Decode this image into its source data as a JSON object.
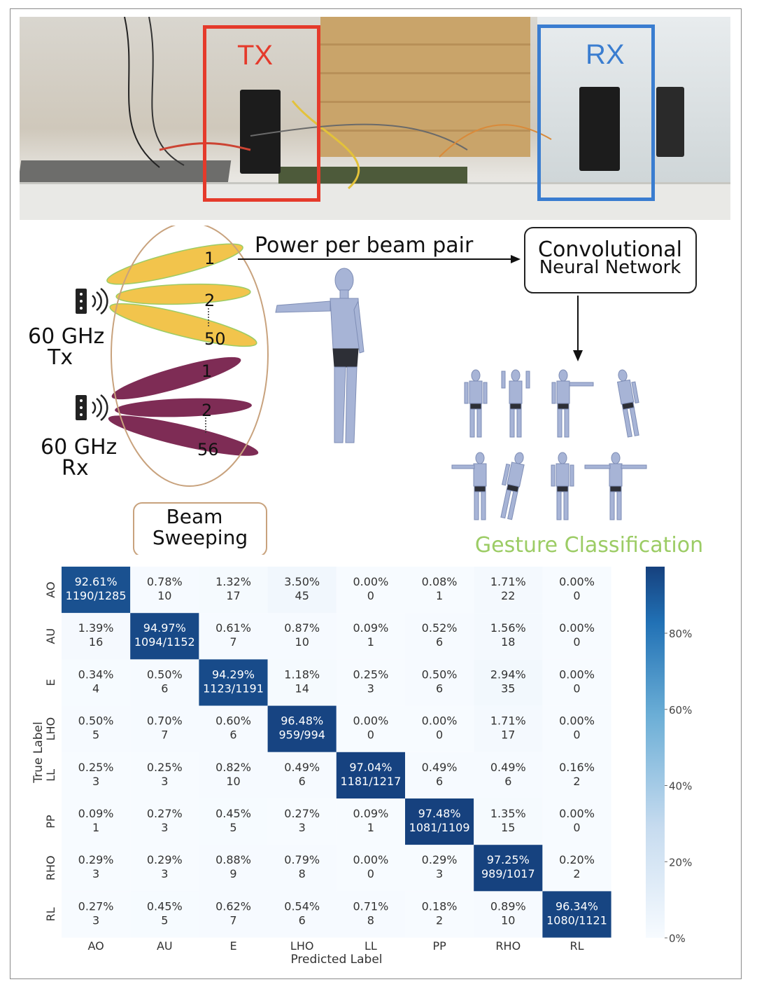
{
  "photo": {
    "tx_label": "TX",
    "rx_label": "RX"
  },
  "diagram": {
    "tx_title_1": "60 GHz",
    "tx_title_2": "Tx",
    "rx_title_1": "60 GHz",
    "rx_title_2": "Rx",
    "tx_beams": [
      "1",
      "2",
      "50"
    ],
    "rx_beams": [
      "1",
      "2",
      "56"
    ],
    "arrow_label": "Power per beam pair",
    "cnn_line1": "Convolutional",
    "cnn_line2": "Neural Network",
    "beam_line1": "Beam",
    "beam_line2": "Sweeping",
    "gesture_label": "Gesture Classification",
    "tx_color": "#f2c44c",
    "rx_color": "#7e2c55",
    "gesture_color": "#9ccc65"
  },
  "chart_data": {
    "type": "heatmap",
    "xlabel": "Predicted Label",
    "ylabel": "True Label",
    "categories": [
      "AO",
      "AU",
      "E",
      "LHO",
      "LL",
      "PP",
      "RHO",
      "RL"
    ],
    "colorbar_ticks": [
      "0%",
      "20%",
      "40%",
      "60%",
      "80%"
    ],
    "colorbar_range": [
      0,
      97.48
    ],
    "colormap": [
      "#f7fbff",
      "#16417e"
    ],
    "cells": [
      [
        [
          "92.61%",
          "1190/1285"
        ],
        [
          "0.78%",
          "10"
        ],
        [
          "1.32%",
          "17"
        ],
        [
          "3.50%",
          "45"
        ],
        [
          "0.00%",
          "0"
        ],
        [
          "0.08%",
          "1"
        ],
        [
          "1.71%",
          "22"
        ],
        [
          "0.00%",
          "0"
        ]
      ],
      [
        [
          "1.39%",
          "16"
        ],
        [
          "94.97%",
          "1094/1152"
        ],
        [
          "0.61%",
          "7"
        ],
        [
          "0.87%",
          "10"
        ],
        [
          "0.09%",
          "1"
        ],
        [
          "0.52%",
          "6"
        ],
        [
          "1.56%",
          "18"
        ],
        [
          "0.00%",
          "0"
        ]
      ],
      [
        [
          "0.34%",
          "4"
        ],
        [
          "0.50%",
          "6"
        ],
        [
          "94.29%",
          "1123/1191"
        ],
        [
          "1.18%",
          "14"
        ],
        [
          "0.25%",
          "3"
        ],
        [
          "0.50%",
          "6"
        ],
        [
          "2.94%",
          "35"
        ],
        [
          "0.00%",
          "0"
        ]
      ],
      [
        [
          "0.50%",
          "5"
        ],
        [
          "0.70%",
          "7"
        ],
        [
          "0.60%",
          "6"
        ],
        [
          "96.48%",
          "959/994"
        ],
        [
          "0.00%",
          "0"
        ],
        [
          "0.00%",
          "0"
        ],
        [
          "1.71%",
          "17"
        ],
        [
          "0.00%",
          "0"
        ]
      ],
      [
        [
          "0.25%",
          "3"
        ],
        [
          "0.25%",
          "3"
        ],
        [
          "0.82%",
          "10"
        ],
        [
          "0.49%",
          "6"
        ],
        [
          "97.04%",
          "1181/1217"
        ],
        [
          "0.49%",
          "6"
        ],
        [
          "0.49%",
          "6"
        ],
        [
          "0.16%",
          "2"
        ]
      ],
      [
        [
          "0.09%",
          "1"
        ],
        [
          "0.27%",
          "3"
        ],
        [
          "0.45%",
          "5"
        ],
        [
          "0.27%",
          "3"
        ],
        [
          "0.09%",
          "1"
        ],
        [
          "97.48%",
          "1081/1109"
        ],
        [
          "1.35%",
          "15"
        ],
        [
          "0.00%",
          "0"
        ]
      ],
      [
        [
          "0.29%",
          "3"
        ],
        [
          "0.29%",
          "3"
        ],
        [
          "0.88%",
          "9"
        ],
        [
          "0.79%",
          "8"
        ],
        [
          "0.00%",
          "0"
        ],
        [
          "0.29%",
          "3"
        ],
        [
          "97.25%",
          "989/1017"
        ],
        [
          "0.20%",
          "2"
        ]
      ],
      [
        [
          "0.27%",
          "3"
        ],
        [
          "0.45%",
          "5"
        ],
        [
          "0.62%",
          "7"
        ],
        [
          "0.54%",
          "6"
        ],
        [
          "0.71%",
          "8"
        ],
        [
          "0.18%",
          "2"
        ],
        [
          "0.89%",
          "10"
        ],
        [
          "96.34%",
          "1080/1121"
        ]
      ]
    ]
  }
}
